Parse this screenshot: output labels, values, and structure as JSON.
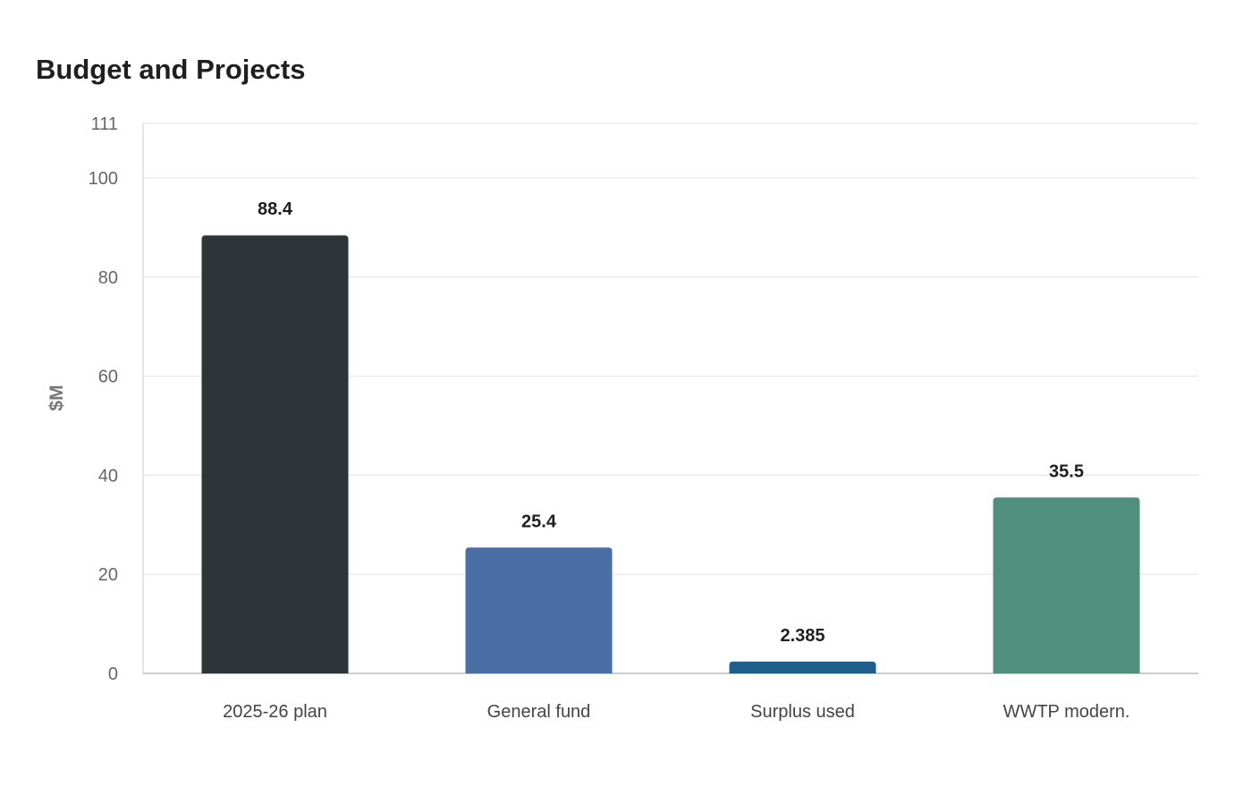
{
  "chart_data": {
    "type": "bar",
    "title": "Budget and Projects",
    "xlabel": "",
    "ylabel": "$M",
    "ylim": [
      0,
      111
    ],
    "yticks": [
      0,
      20,
      40,
      60,
      80,
      100,
      111
    ],
    "grid": true,
    "categories": [
      "2025-26 plan",
      "General fund",
      "Surplus used",
      "WWTP modern."
    ],
    "values": [
      88.4,
      25.4,
      2.385,
      35.5
    ],
    "value_labels": [
      "88.4",
      "25.4",
      "2.385",
      "35.5"
    ],
    "colors": [
      "#2e3538",
      "#4a6fa5",
      "#1d5f8a",
      "#4f8f7c"
    ]
  }
}
